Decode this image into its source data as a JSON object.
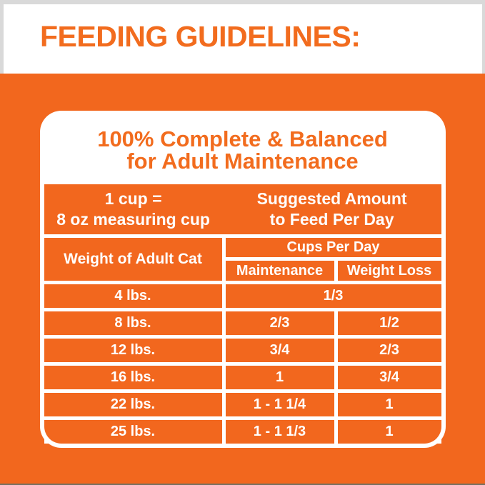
{
  "colors": {
    "orange": "#F2671E",
    "heading-orange": "#F26C1E",
    "white": "#FFFFFF",
    "edge-grey": "#D9D9D9",
    "bottom-edge": "#756F5E"
  },
  "header": {
    "title": "FEEDING GUIDELINES:"
  },
  "card": {
    "title": {
      "line1": "100% Complete & Balanced",
      "line2": "for Adult Maintenance"
    },
    "key_row": {
      "cup_info_line1": "1 cup =",
      "cup_info_line2": "8 oz measuring cup",
      "suggestion_line1": "Suggested Amount",
      "suggestion_line2": "to Feed Per Day"
    },
    "table": {
      "weight_header": "Weight of Adult Cat",
      "cups_header": "Cups Per Day",
      "maintenance_header": "Maintenance",
      "weight_loss_header": "Weight Loss",
      "rows": [
        {
          "weight": "4 lbs.",
          "amount": "1/3"
        },
        {
          "weight": "8 lbs.",
          "maintenance": "2/3",
          "weight_loss": "1/2"
        },
        {
          "weight": "12 lbs.",
          "maintenance": "3/4",
          "weight_loss": "2/3"
        },
        {
          "weight": "16 lbs.",
          "maintenance": "1",
          "weight_loss": "3/4"
        },
        {
          "weight": "22 lbs.",
          "maintenance": "1 - 1 1/4",
          "weight_loss": "1"
        },
        {
          "weight": "25 lbs.",
          "maintenance": "1 - 1 1/3",
          "weight_loss": "1"
        }
      ]
    }
  }
}
